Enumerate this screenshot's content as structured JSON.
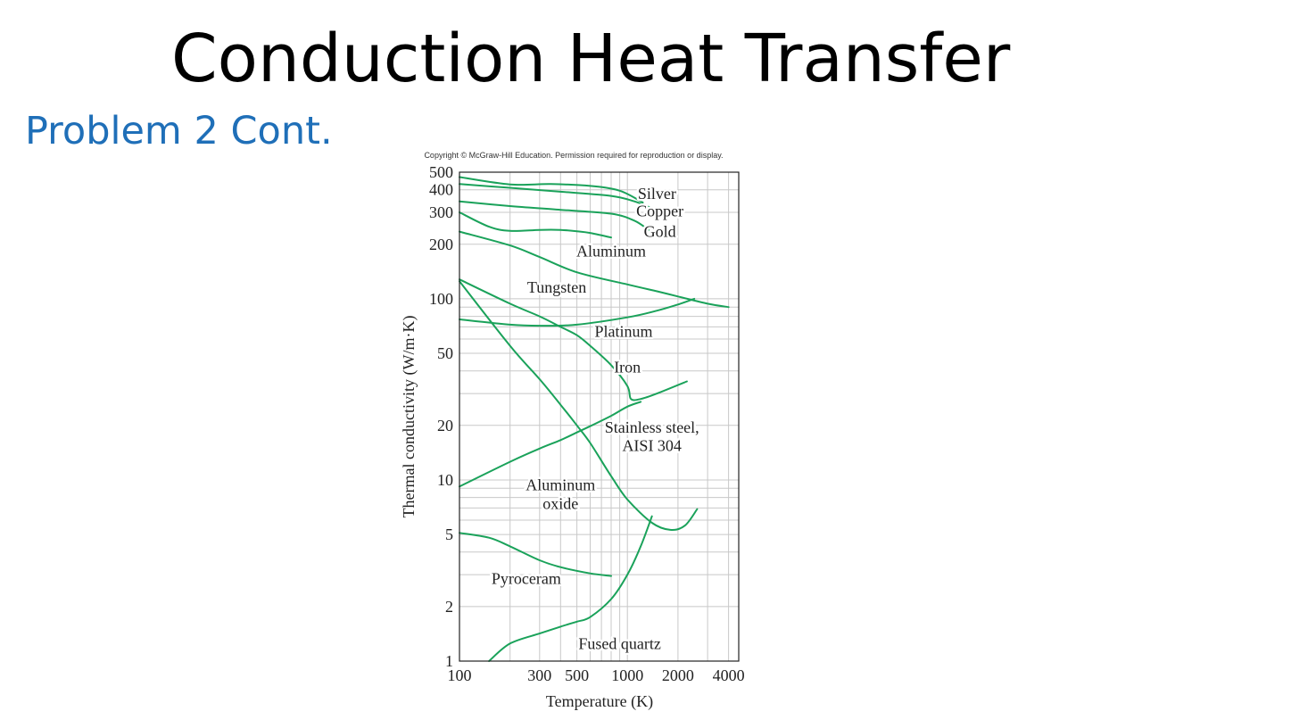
{
  "slide": {
    "title": "Conduction Heat Transfer",
    "subtitle": "Problem 2 Cont."
  },
  "colors": {
    "curve": "#1aa25a",
    "subtitle": "#1f6fb8",
    "grid": "#c8c8c8"
  },
  "chart_data": {
    "type": "line",
    "copyright": "Copyright © McGraw-Hill Education. Permission required for reproduction or display.",
    "xlabel": "Temperature (K)",
    "ylabel": "Thermal conductivity (W/m·K)",
    "x_scale": "log",
    "y_scale": "log",
    "xlim": [
      100,
      4600
    ],
    "ylim": [
      1,
      500
    ],
    "x_ticks": [
      {
        "value": 100,
        "label": "100"
      },
      {
        "value": 300,
        "label": "300"
      },
      {
        "value": 500,
        "label": "500"
      },
      {
        "value": 1000,
        "label": "1000"
      },
      {
        "value": 2000,
        "label": "2000"
      },
      {
        "value": 4000,
        "label": "4000"
      }
    ],
    "y_ticks": [
      {
        "value": 1,
        "label": "1"
      },
      {
        "value": 2,
        "label": "2"
      },
      {
        "value": 5,
        "label": "5"
      },
      {
        "value": 10,
        "label": "10"
      },
      {
        "value": 20,
        "label": "20"
      },
      {
        "value": 50,
        "label": "50"
      },
      {
        "value": 100,
        "label": "100"
      },
      {
        "value": 200,
        "label": "200"
      },
      {
        "value": 300,
        "label": "300"
      },
      {
        "value": 400,
        "label": "400"
      },
      {
        "value": 500,
        "label": "500"
      }
    ],
    "grid": true,
    "series": [
      {
        "name": "Silver",
        "label": "Silver",
        "label_at": [
          1500,
          380
        ],
        "x": [
          100,
          200,
          350,
          600,
          900,
          1235
        ],
        "y": [
          470,
          428,
          430,
          420,
          395,
          340
        ]
      },
      {
        "name": "Copper",
        "label": "Copper",
        "label_at": [
          1560,
          305
        ],
        "x": [
          100,
          200,
          400,
          800,
          1100,
          1358
        ],
        "y": [
          430,
          410,
          390,
          370,
          345,
          320
        ]
      },
      {
        "name": "Gold",
        "label": "Gold",
        "label_at": [
          1560,
          235
        ],
        "x": [
          100,
          200,
          400,
          800,
          1100,
          1336
        ],
        "y": [
          345,
          325,
          310,
          295,
          270,
          240
        ]
      },
      {
        "name": "Aluminum",
        "label": "Aluminum",
        "label_at": [
          800,
          183
        ],
        "x": [
          100,
          150,
          200,
          300,
          400,
          500,
          600,
          800
        ],
        "y": [
          300,
          250,
          237,
          240,
          240,
          236,
          231,
          218
        ]
      },
      {
        "name": "Tungsten",
        "label": "Tungsten",
        "label_at": [
          380,
          116
        ],
        "x": [
          100,
          200,
          300,
          500,
          1000,
          1500,
          2000,
          3000,
          4000
        ],
        "y": [
          235,
          197,
          170,
          140,
          120,
          110,
          103,
          94,
          90
        ]
      },
      {
        "name": "Platinum",
        "label": "Platinum",
        "label_at": [
          950,
          66
        ],
        "x": [
          100,
          200,
          300,
          500,
          1000,
          1500,
          2000,
          2500
        ],
        "y": [
          77,
          72,
          71,
          72,
          79,
          86,
          93,
          100
        ]
      },
      {
        "name": "Iron",
        "label": "Iron",
        "label_at": [
          1000,
          42
        ],
        "x": [
          100,
          200,
          300,
          400,
          500,
          600,
          800,
          1000,
          1050,
          1200,
          1500,
          2260
        ],
        "y": [
          128,
          94,
          80,
          70,
          63,
          55,
          43,
          33,
          28,
          28,
          30,
          35
        ]
      },
      {
        "name": "Stainless steel, AISI 304",
        "label": "Stainless steel,",
        "label2": "AISI 304",
        "label_at": [
          1400,
          19.5
        ],
        "label2_at": [
          1400,
          15.5
        ],
        "x": [
          100,
          200,
          300,
          400,
          500,
          600,
          800,
          1000,
          1200
        ],
        "y": [
          9.2,
          12.6,
          14.9,
          16.6,
          18.3,
          19.8,
          22.6,
          25.4,
          27
        ]
      },
      {
        "name": "Aluminum oxide",
        "label": "Aluminum",
        "label2": "oxide",
        "label_at": [
          400,
          9.4
        ],
        "label2_at": [
          400,
          7.4
        ],
        "x": [
          100,
          200,
          300,
          400,
          500,
          600,
          800,
          1000,
          1400,
          1800,
          2200,
          2600
        ],
        "y": [
          125,
          55,
          36,
          26,
          20,
          16,
          10.5,
          7.8,
          5.8,
          5.3,
          5.6,
          6.9
        ]
      },
      {
        "name": "Pyroceram",
        "label": "Pyroceram",
        "label_at": [
          250,
          2.85
        ],
        "x": [
          100,
          150,
          200,
          300,
          400,
          600,
          800
        ],
        "y": [
          5.1,
          4.8,
          4.3,
          3.6,
          3.3,
          3.05,
          2.95
        ]
      },
      {
        "name": "Fused quartz",
        "label": "Fused quartz",
        "label_at": [
          900,
          1.25
        ],
        "x": [
          150,
          200,
          300,
          400,
          500,
          600,
          800,
          1000,
          1200,
          1400
        ],
        "y": [
          1.0,
          1.25,
          1.42,
          1.55,
          1.65,
          1.75,
          2.2,
          3.0,
          4.3,
          6.3
        ]
      }
    ]
  }
}
